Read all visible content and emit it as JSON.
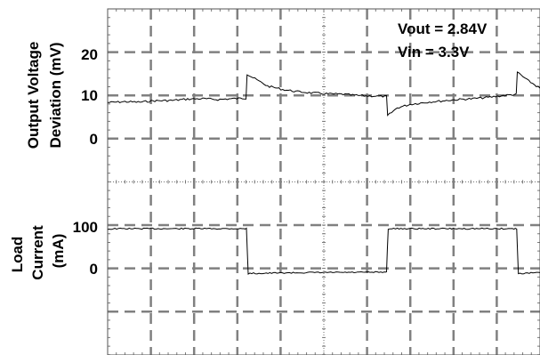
{
  "chart_data": [
    {
      "type": "line",
      "panel": "top",
      "ylabel_lines": [
        "Output Voltage",
        "Deviation (mV)"
      ],
      "yticks": [
        "20",
        "10",
        "0"
      ],
      "ylim": [
        -20,
        30
      ],
      "grid": true,
      "annotations": [
        "Vout = 2.84V",
        "Vin = 3.3V"
      ],
      "series": [
        {
          "x": [
            0,
            0.8,
            1.5,
            2.1,
            3.0,
            3.7,
            4.4,
            5.1,
            5.8,
            6.4,
            6.45,
            6.9,
            7.4,
            8.1,
            8.8,
            9.5,
            10.2,
            10.9,
            11.6,
            12.3,
            12.9,
            12.95,
            13.4,
            14.0,
            14.8,
            15.5,
            16.2,
            16.9,
            17.6,
            18.3,
            18.9,
            18.95,
            19.4,
            20.0
          ],
          "y": [
            8,
            8.2,
            8.1,
            8.4,
            8.5,
            8.8,
            8.9,
            8.7,
            8.9,
            9.0,
            14.5,
            13.2,
            11.8,
            11.0,
            10.5,
            10.2,
            10.0,
            9.9,
            9.6,
            9.5,
            9.4,
            5.0,
            6.8,
            7.6,
            8.1,
            8.4,
            8.7,
            8.9,
            9.2,
            9.6,
            9.9,
            15.0,
            13.2,
            11.3
          ]
        }
      ]
    },
    {
      "type": "line",
      "panel": "bottom",
      "ylabel_lines": [
        "Load",
        "Current",
        "(mA)"
      ],
      "yticks": [
        "100",
        "0"
      ],
      "ylim": [
        -200,
        300
      ],
      "grid": true,
      "series": [
        {
          "x": [
            0,
            0.5,
            3.0,
            6.3,
            6.42,
            6.5,
            9.0,
            12.8,
            12.9,
            12.98,
            15.5,
            18.8,
            18.92,
            19.0,
            20.0
          ],
          "y": [
            99,
            100,
            100,
            100,
            100,
            -5,
            -3,
            -2,
            0,
            100,
            100,
            100,
            100,
            -5,
            -3
          ]
        }
      ]
    }
  ]
}
